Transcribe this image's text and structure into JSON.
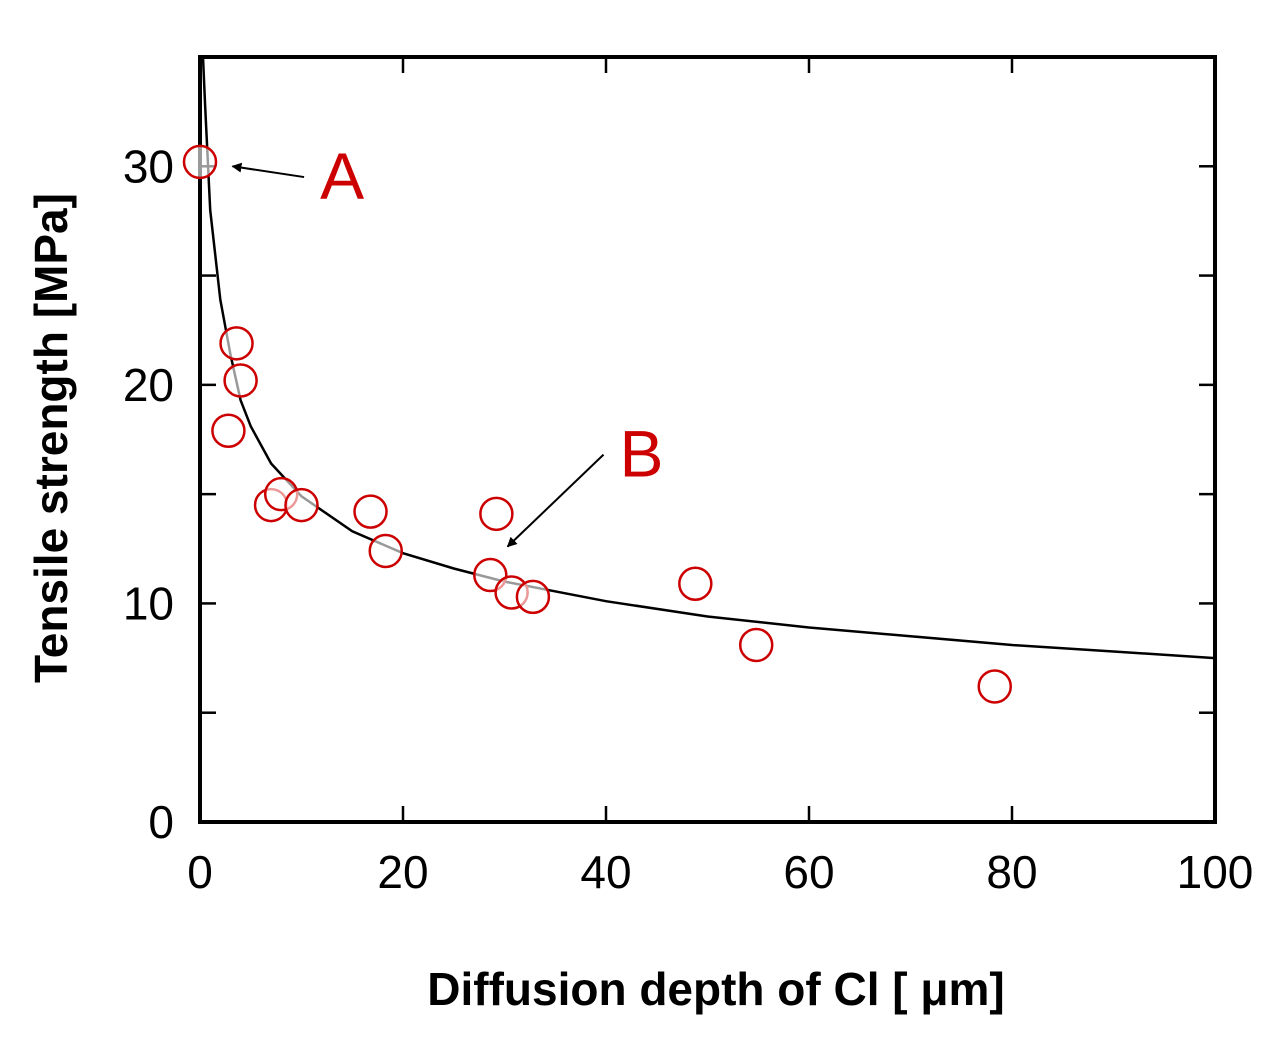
{
  "chart_data": {
    "type": "scatter",
    "xlabel": "Diffusion depth of Cl [ μm]",
    "ylabel": "Tensile strength [MPa]",
    "xlim": [
      0,
      100
    ],
    "ylim": [
      0,
      35
    ],
    "x_ticks": [
      0,
      20,
      40,
      60,
      80,
      100
    ],
    "y_ticks": [
      0,
      10,
      20,
      30
    ],
    "y_minor_ticks": [
      5,
      15,
      25
    ],
    "grid": false,
    "marker": "open-circle",
    "marker_color": "#cc0000",
    "curve_color": "#000000",
    "series": [
      {
        "points": [
          {
            "x": 0.0,
            "y": 30.2
          },
          {
            "x": 3.6,
            "y": 21.9
          },
          {
            "x": 4.0,
            "y": 20.2
          },
          {
            "x": 2.8,
            "y": 17.9
          },
          {
            "x": 7.0,
            "y": 14.5
          },
          {
            "x": 8.0,
            "y": 15.0
          },
          {
            "x": 10.0,
            "y": 14.5
          },
          {
            "x": 16.8,
            "y": 14.2
          },
          {
            "x": 18.3,
            "y": 12.4
          },
          {
            "x": 29.2,
            "y": 14.1
          },
          {
            "x": 28.6,
            "y": 11.3
          },
          {
            "x": 30.7,
            "y": 10.5
          },
          {
            "x": 32.8,
            "y": 10.3
          },
          {
            "x": 48.8,
            "y": 10.9
          },
          {
            "x": 54.8,
            "y": 8.1
          },
          {
            "x": 78.3,
            "y": 6.2
          }
        ]
      },
      {
        "type": "line",
        "points": [
          {
            "x": 0.3,
            "y": 35.0
          },
          {
            "x": 0.5,
            "y": 32.8
          },
          {
            "x": 1,
            "y": 28.0
          },
          {
            "x": 2,
            "y": 23.9
          },
          {
            "x": 3,
            "y": 21.4
          },
          {
            "x": 4,
            "y": 19.3
          },
          {
            "x": 5,
            "y": 18.1
          },
          {
            "x": 7,
            "y": 16.4
          },
          {
            "x": 10,
            "y": 14.9
          },
          {
            "x": 15,
            "y": 13.3
          },
          {
            "x": 20,
            "y": 12.3
          },
          {
            "x": 25,
            "y": 11.6
          },
          {
            "x": 30,
            "y": 11.0
          },
          {
            "x": 40,
            "y": 10.1
          },
          {
            "x": 50,
            "y": 9.4
          },
          {
            "x": 60,
            "y": 8.9
          },
          {
            "x": 70,
            "y": 8.5
          },
          {
            "x": 80,
            "y": 8.1
          },
          {
            "x": 90,
            "y": 7.8
          },
          {
            "x": 100,
            "y": 7.5
          }
        ]
      }
    ],
    "annotations": [
      {
        "text": "A",
        "color": "#cc0000",
        "at": {
          "x": 14.0,
          "y": 28.5
        },
        "points_to": {
          "x": 3.2,
          "y": 30.0
        }
      },
      {
        "text": "B",
        "color": "#cc0000",
        "at": {
          "x": 43.5,
          "y": 15.8
        },
        "points_to": {
          "x": 30.3,
          "y": 12.6
        }
      }
    ]
  }
}
